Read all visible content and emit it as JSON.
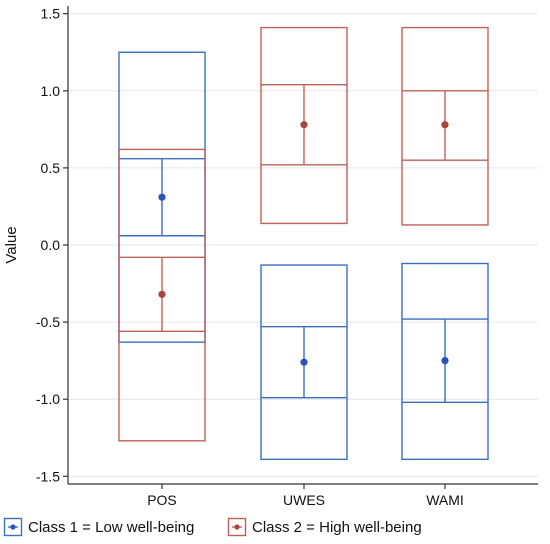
{
  "chart_data": {
    "type": "box",
    "ylabel": "Value",
    "ylim": [
      -1.5,
      1.5
    ],
    "yticks": [
      1.5,
      1.0,
      0.5,
      0.0,
      -0.5,
      -1.0,
      -1.5
    ],
    "ytick_labels": [
      "1.5",
      "1.0",
      "0.5",
      "0.0",
      "-0.5",
      "-1.0",
      "-1.5"
    ],
    "categories": [
      "POS",
      "UWES",
      "WAMI"
    ],
    "grid": "horizontal",
    "legend_position": "bottom",
    "series": [
      {
        "name": "Class 1 = Low well-being",
        "color": "#3a6fc4",
        "marker_color": "#2a52b8",
        "boxes": [
          {
            "category": "POS",
            "min": -0.63,
            "q1": 0.06,
            "median": 0.31,
            "q3": 0.56,
            "max": 1.25,
            "mean": 0.31
          },
          {
            "category": "UWES",
            "min": -1.39,
            "q1": -0.99,
            "median": -0.76,
            "q3": -0.53,
            "max": -0.13,
            "mean": -0.76
          },
          {
            "category": "WAMI",
            "min": -1.39,
            "q1": -1.02,
            "median": -0.75,
            "q3": -0.48,
            "max": -0.12,
            "mean": -0.75
          }
        ]
      },
      {
        "name": "Class 2 = High well-being",
        "color": "#c0605a",
        "marker_color": "#a8443a",
        "boxes": [
          {
            "category": "POS",
            "min": -1.27,
            "q1": -0.56,
            "median": -0.32,
            "q3": -0.08,
            "max": 0.62,
            "mean": -0.32
          },
          {
            "category": "UWES",
            "min": 0.14,
            "q1": 0.52,
            "median": 0.78,
            "q3": 1.04,
            "max": 1.41,
            "mean": 0.78
          },
          {
            "category": "WAMI",
            "min": 0.13,
            "q1": 0.55,
            "median": 0.78,
            "q3": 1.0,
            "max": 1.41,
            "mean": 0.78
          }
        ]
      }
    ]
  }
}
